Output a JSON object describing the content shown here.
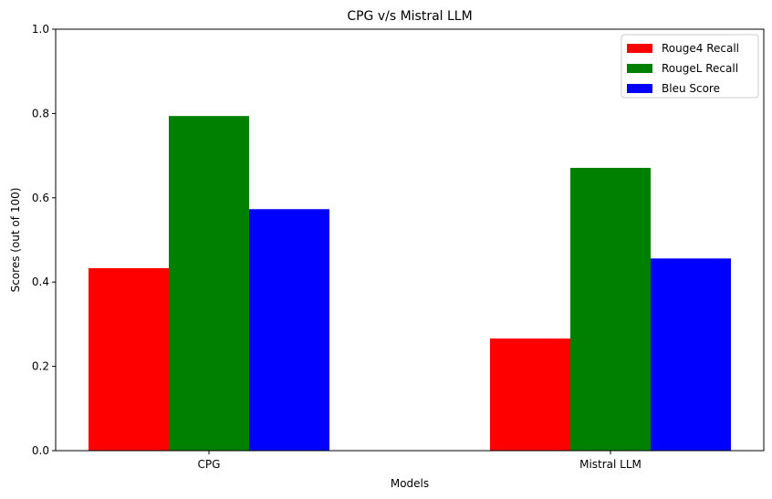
{
  "chart_data": {
    "type": "bar",
    "title": "CPG v/s Mistral LLM",
    "xlabel": "Models",
    "ylabel": "Scores (out of 100)",
    "categories": [
      "CPG",
      "Mistral LLM"
    ],
    "series": [
      {
        "name": "Rouge4 Recall",
        "values": [
          0.433,
          0.266
        ],
        "color": "#ff0000"
      },
      {
        "name": "RougeL Recall",
        "values": [
          0.794,
          0.671
        ],
        "color": "#008000"
      },
      {
        "name": "Bleu Score",
        "values": [
          0.573,
          0.456
        ],
        "color": "#0000ff"
      }
    ],
    "ylim": [
      0,
      1
    ],
    "yticks": [
      "0.0",
      "0.2",
      "0.4",
      "0.6",
      "0.8",
      "1.0"
    ],
    "grid": false,
    "legend_position": "top-right"
  }
}
